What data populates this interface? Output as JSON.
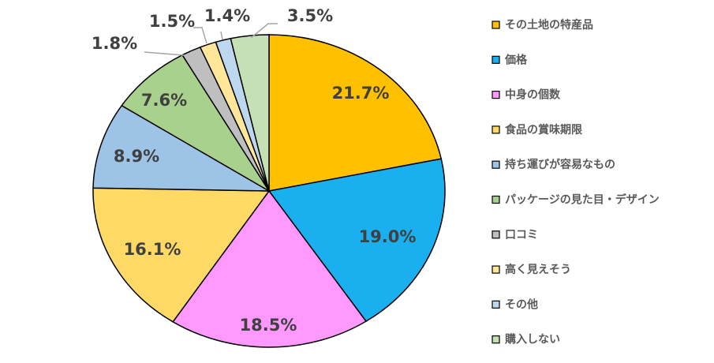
{
  "chart_data": {
    "type": "pie",
    "unit": "%",
    "legend_position": "right",
    "slices": [
      {
        "label": "その土地の特産品",
        "value": 21.7,
        "display": "21.7%",
        "color": "#FFC000"
      },
      {
        "label": "価格",
        "value": 19.0,
        "display": "19.0%",
        "color": "#1AAFEF"
      },
      {
        "label": "中身の個数",
        "value": 18.5,
        "display": "18.5%",
        "color": "#FF99FF"
      },
      {
        "label": "食品の賞味期限",
        "value": 16.1,
        "display": "16.1%",
        "color": "#FFD966"
      },
      {
        "label": "持ち運びが容易なもの",
        "value": 8.9,
        "display": "8.9%",
        "color": "#9DC3E6"
      },
      {
        "label": "パッケージの見た目・デザイン",
        "value": 7.6,
        "display": "7.6%",
        "color": "#A9D18E"
      },
      {
        "label": "口コミ",
        "value": 1.8,
        "display": "1.8%",
        "color": "#BFBFBF"
      },
      {
        "label": "高く見えそう",
        "value": 1.5,
        "display": "1.5%",
        "color": "#FFE699"
      },
      {
        "label": "その他",
        "value": 1.4,
        "display": "1.4%",
        "color": "#BDD7EE"
      },
      {
        "label": "購入しない",
        "value": 3.5,
        "display": "3.5%",
        "color": "#C5E0B4"
      }
    ]
  }
}
